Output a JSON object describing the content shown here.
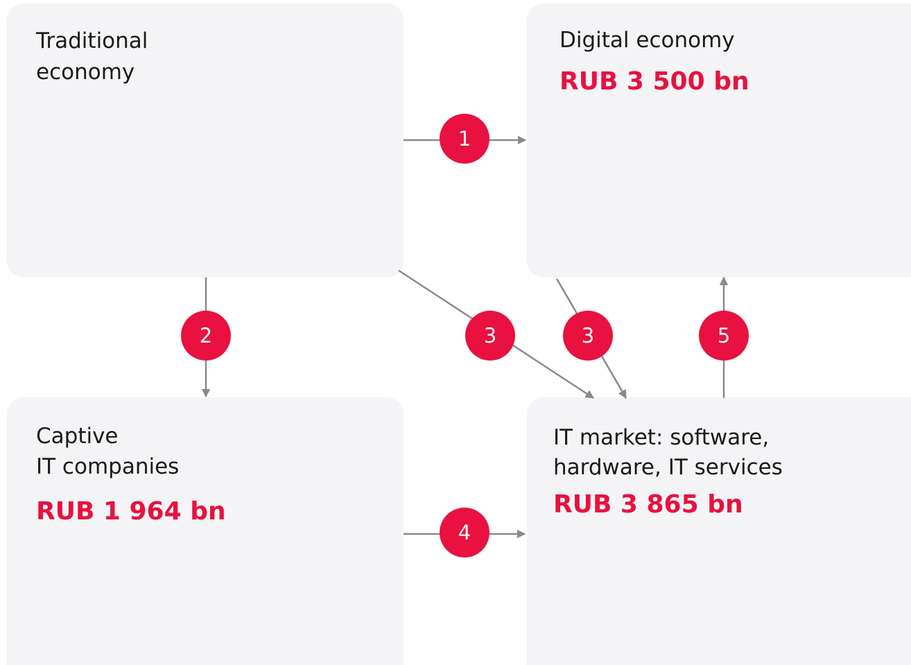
{
  "nodes": [
    {
      "label": [
        "Traditional",
        "economy"
      ]
    },
    {
      "label": [
        "Digital economy"
      ],
      "value": "RUB 3 500 bn"
    },
    {
      "label": [
        "Captive",
        "IT companies"
      ],
      "value": "RUB 1 964 bn"
    },
    {
      "label": [
        "IT market: software,",
        "hardware, IT services"
      ],
      "value": "RUB 3 865 bn"
    }
  ],
  "edges": [
    {
      "label": "1"
    },
    {
      "label": "2"
    },
    {
      "label": "3"
    },
    {
      "label": "3"
    },
    {
      "label": "5"
    },
    {
      "label": "4"
    }
  ]
}
